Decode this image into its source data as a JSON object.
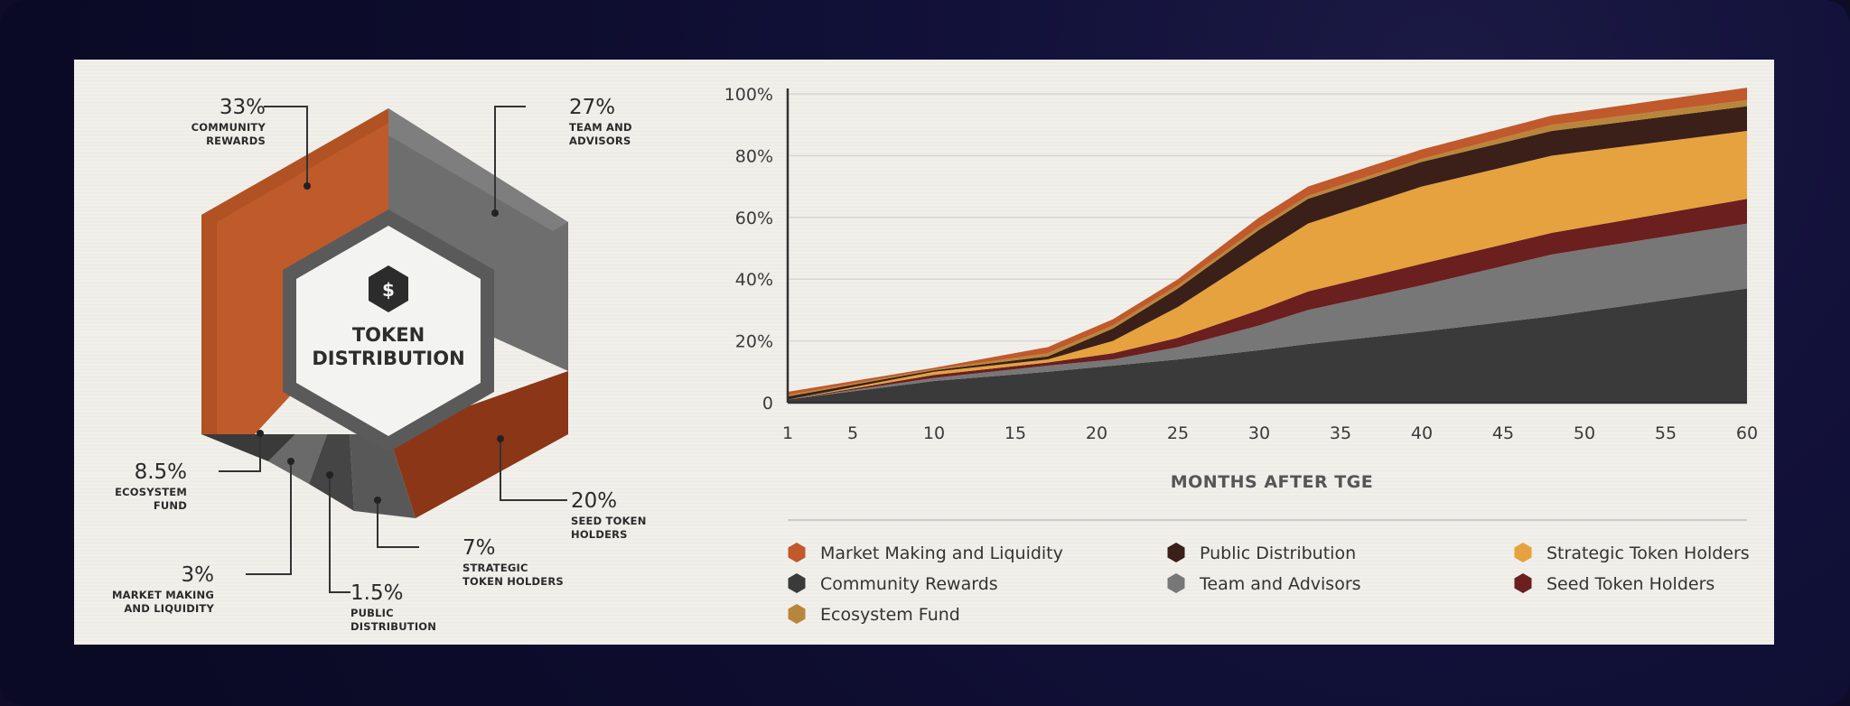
{
  "pie": {
    "center_title_line1": "TOKEN",
    "center_title_line2": "DISTRIBUTION",
    "icon": "dollar-hexagon-icon",
    "segments": [
      {
        "key": "community",
        "pct": "33%",
        "cap1": "COMMUNITY",
        "cap2": "REWARDS",
        "color": "#c0592b"
      },
      {
        "key": "team",
        "pct": "27%",
        "cap1": "TEAM AND",
        "cap2": "ADVISORS",
        "color": "#6f6f6f"
      },
      {
        "key": "seed",
        "pct": "20%",
        "cap1": "SEED TOKEN",
        "cap2": "HOLDERS",
        "color": "#8a3515"
      },
      {
        "key": "strategic",
        "pct": "7%",
        "cap1": "STRATEGIC",
        "cap2": "TOKEN HOLDERS",
        "color": "#555555"
      },
      {
        "key": "public",
        "pct": "1.5%",
        "cap1": "PUBLIC",
        "cap2": "DISTRIBUTION",
        "color": "#4a4a4a"
      },
      {
        "key": "market",
        "pct": "3%",
        "cap1": "MARKET MAKING",
        "cap2": "AND LIQUIDITY",
        "color": "#3c3c3c"
      },
      {
        "key": "ecosystem",
        "pct": "8.5%",
        "cap1": "ECOSYSTEM",
        "cap2": "FUND",
        "color": "#303030"
      }
    ]
  },
  "chart_data": {
    "type": "area",
    "stacked": true,
    "xlabel": "MONTHS AFTER TGE",
    "x_ticks": [
      1,
      5,
      10,
      15,
      20,
      25,
      30,
      35,
      40,
      45,
      50,
      55,
      60
    ],
    "y_ticks": [
      "0",
      "20%",
      "40%",
      "60%",
      "80%",
      "100%"
    ],
    "ylim": [
      0,
      100
    ],
    "xlim": [
      1,
      60
    ],
    "x": [
      1,
      10,
      17,
      21,
      25,
      30,
      33,
      40,
      48,
      60
    ],
    "series": [
      {
        "name": "Community Rewards",
        "color": "#3a3a3a",
        "values": [
          1,
          7,
          10,
          12,
          14,
          17,
          19,
          23,
          28,
          37
        ]
      },
      {
        "name": "Team and Advisors",
        "color": "#777777",
        "values": [
          0,
          1,
          2,
          2,
          4,
          8,
          11,
          15,
          20,
          21
        ]
      },
      {
        "name": "Seed Token Holders",
        "color": "#6b1f1f",
        "values": [
          0,
          1,
          1,
          2,
          3,
          5,
          6,
          7,
          7,
          8
        ]
      },
      {
        "name": "Strategic Token Holders",
        "color": "#e6a23e",
        "values": [
          0,
          1,
          1,
          4,
          10,
          18,
          22,
          25,
          25,
          22
        ]
      },
      {
        "name": "Public Distribution",
        "color": "#3a2018",
        "values": [
          1,
          0.5,
          1,
          4,
          6,
          8,
          8,
          8,
          8,
          8
        ]
      },
      {
        "name": "Ecosystem Fund",
        "color": "#b8863a",
        "values": [
          0.5,
          0.3,
          1,
          1,
          1,
          1,
          1,
          1,
          2,
          2
        ]
      },
      {
        "name": "Market Making and Liquidity",
        "color": "#c0592b",
        "values": [
          1,
          0.5,
          2,
          2,
          2,
          3,
          3,
          3,
          3,
          4
        ]
      }
    ],
    "legend": [
      {
        "label": "Market Making and Liquidity",
        "color": "#c0592b"
      },
      {
        "label": "Public Distribution",
        "color": "#3a2018"
      },
      {
        "label": "Strategic Token Holders",
        "color": "#e6a23e"
      },
      {
        "label": "Community Rewards",
        "color": "#3a3a3a"
      },
      {
        "label": "Team and Advisors",
        "color": "#777777"
      },
      {
        "label": "Seed Token Holders",
        "color": "#6b1f1f"
      },
      {
        "label": "Ecosystem Fund",
        "color": "#b8863a"
      }
    ]
  }
}
